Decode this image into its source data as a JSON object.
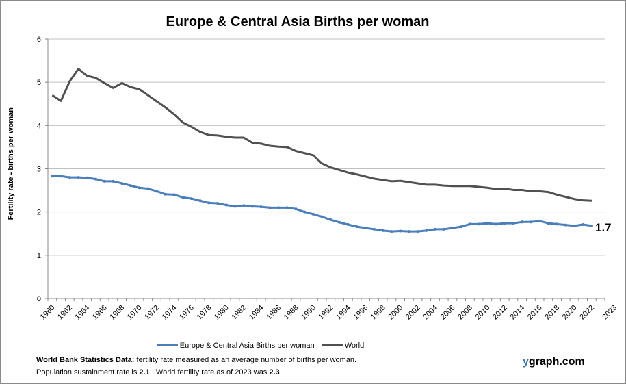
{
  "chart_data": {
    "type": "line",
    "title": "Europe & Central Asia Births per woman",
    "ylabel": "Fertility rate  - births per woman",
    "xlabel": "",
    "ylim": [
      0,
      6
    ],
    "yticks": [
      "0",
      "1",
      "2",
      "3",
      "4",
      "5",
      "6"
    ],
    "grid": true,
    "legend_position": "bottom",
    "x_tick_labels": [
      "1960",
      "1962",
      "1964",
      "1966",
      "1968",
      "1970",
      "1972",
      "1974",
      "1976",
      "1978",
      "1980",
      "1982",
      "1984",
      "1986",
      "1988",
      "1990",
      "1992",
      "1994",
      "1996",
      "1998",
      "2000",
      "2002",
      "2004",
      "2006",
      "2008",
      "2010",
      "2012",
      "2014",
      "2016",
      "2018",
      "2020",
      "2022",
      "2023"
    ],
    "x_start": 1960,
    "x_end": 2023,
    "series": [
      {
        "name": "Europe & Central Asia Births per woman",
        "color": "#4a7ebb",
        "markers": true,
        "values": [
          2.83,
          2.83,
          2.8,
          2.8,
          2.79,
          2.76,
          2.71,
          2.71,
          2.66,
          2.61,
          2.56,
          2.54,
          2.48,
          2.41,
          2.4,
          2.34,
          2.31,
          2.26,
          2.21,
          2.2,
          2.16,
          2.13,
          2.15,
          2.13,
          2.12,
          2.1,
          2.1,
          2.1,
          2.07,
          2.0,
          1.95,
          1.89,
          1.82,
          1.76,
          1.71,
          1.66,
          1.63,
          1.6,
          1.57,
          1.55,
          1.56,
          1.55,
          1.55,
          1.57,
          1.6,
          1.6,
          1.63,
          1.66,
          1.72,
          1.72,
          1.74,
          1.72,
          1.74,
          1.74,
          1.77,
          1.77,
          1.79,
          1.74,
          1.72,
          1.7,
          1.68,
          1.71,
          1.68
        ]
      },
      {
        "name": "World",
        "color": "#505050",
        "markers": false,
        "values": [
          4.7,
          4.57,
          5.02,
          5.31,
          5.15,
          5.1,
          4.98,
          4.87,
          4.98,
          4.89,
          4.84,
          4.7,
          4.56,
          4.42,
          4.26,
          4.07,
          3.97,
          3.85,
          3.78,
          3.77,
          3.74,
          3.72,
          3.72,
          3.6,
          3.58,
          3.53,
          3.51,
          3.5,
          3.41,
          3.36,
          3.31,
          3.12,
          3.03,
          2.97,
          2.91,
          2.87,
          2.82,
          2.77,
          2.74,
          2.71,
          2.72,
          2.69,
          2.66,
          2.63,
          2.63,
          2.61,
          2.6,
          2.6,
          2.6,
          2.58,
          2.56,
          2.53,
          2.54,
          2.51,
          2.51,
          2.48,
          2.48,
          2.46,
          2.4,
          2.35,
          2.3,
          2.27,
          2.26
        ]
      }
    ],
    "end_label": "1.7"
  },
  "footer": {
    "source_bold": "World Bank Statistics Data:",
    "source_text": " fertility rate measured as an average number  of births per woman.",
    "sustain_text": "Population sustainment rate is ",
    "sustain_value": "2.1",
    "world_text": "   World fertility rate as of 2023 was ",
    "world_value": "2.3",
    "brand_y": "y",
    "brand_rest": "graph.com"
  }
}
